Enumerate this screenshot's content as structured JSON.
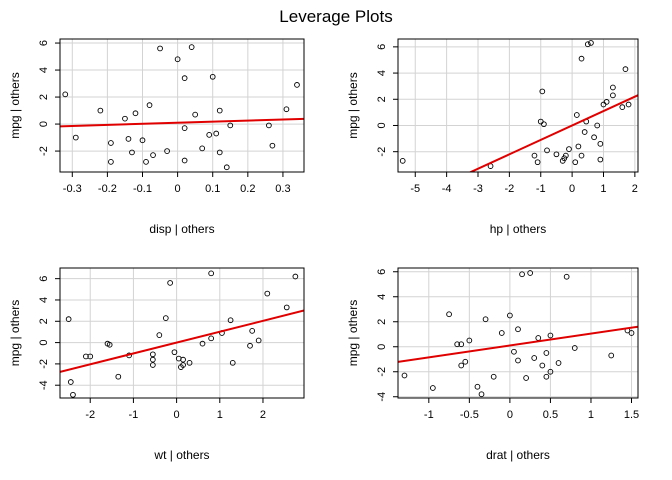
{
  "title": "Leverage Plots",
  "chart_data": [
    {
      "type": "scatter",
      "xlabel": "disp | others",
      "ylabel": "mpg  | others",
      "xlim": [
        -0.335,
        0.36
      ],
      "ylim": [
        -3.55,
        6.3
      ],
      "xticks": [
        -0.3,
        -0.2,
        -0.1,
        0.0,
        0.1,
        0.2,
        0.3
      ],
      "yticks": [
        -2,
        0,
        2,
        4,
        6
      ],
      "grid": true,
      "points": [
        [
          -0.32,
          2.2
        ],
        [
          -0.29,
          -1.0
        ],
        [
          -0.22,
          1.0
        ],
        [
          -0.19,
          -1.4
        ],
        [
          -0.19,
          -2.8
        ],
        [
          -0.15,
          0.4
        ],
        [
          -0.14,
          -1.1
        ],
        [
          -0.13,
          -2.1
        ],
        [
          -0.12,
          0.8
        ],
        [
          -0.1,
          -1.2
        ],
        [
          -0.09,
          -2.8
        ],
        [
          -0.08,
          1.4
        ],
        [
          -0.07,
          -2.3
        ],
        [
          -0.05,
          5.6
        ],
        [
          -0.03,
          -2.0
        ],
        [
          0.0,
          4.8
        ],
        [
          0.02,
          -2.7
        ],
        [
          0.02,
          3.4
        ],
        [
          0.02,
          -0.3
        ],
        [
          0.04,
          5.7
        ],
        [
          0.05,
          0.7
        ],
        [
          0.07,
          -1.8
        ],
        [
          0.09,
          -0.8
        ],
        [
          0.1,
          3.5
        ],
        [
          0.11,
          -0.7
        ],
        [
          0.12,
          1.0
        ],
        [
          0.12,
          -2.1
        ],
        [
          0.14,
          -3.2
        ],
        [
          0.15,
          -0.1
        ],
        [
          0.26,
          -0.1
        ],
        [
          0.27,
          -1.6
        ],
        [
          0.31,
          1.1
        ],
        [
          0.34,
          2.9
        ]
      ],
      "fit": {
        "intercept": 0.1,
        "slope": 0.8
      }
    },
    {
      "type": "scatter",
      "xlabel": "hp | others",
      "ylabel": "mpg  | others",
      "xlim": [
        -5.55,
        2.1
      ],
      "ylim": [
        -3.55,
        6.6
      ],
      "xticks": [
        -5,
        -4,
        -3,
        -2,
        -1,
        0,
        1,
        2
      ],
      "yticks": [
        -2,
        0,
        2,
        4,
        6
      ],
      "grid": true,
      "points": [
        [
          -5.4,
          -2.7
        ],
        [
          -2.6,
          -3.1
        ],
        [
          -1.2,
          -2.3
        ],
        [
          -1.1,
          -2.8
        ],
        [
          -1.0,
          0.3
        ],
        [
          -0.95,
          2.6
        ],
        [
          -0.9,
          0.1
        ],
        [
          -0.8,
          -1.9
        ],
        [
          -0.5,
          -2.2
        ],
        [
          -0.3,
          -2.7
        ],
        [
          -0.25,
          -2.5
        ],
        [
          -0.2,
          -2.3
        ],
        [
          -0.1,
          -1.8
        ],
        [
          0.1,
          -2.8
        ],
        [
          0.15,
          0.8
        ],
        [
          0.2,
          -1.6
        ],
        [
          0.3,
          -2.3
        ],
        [
          0.3,
          5.1
        ],
        [
          0.4,
          -0.5
        ],
        [
          0.45,
          0.3
        ],
        [
          0.5,
          6.2
        ],
        [
          0.6,
          6.3
        ],
        [
          0.7,
          -0.9
        ],
        [
          0.8,
          0.0
        ],
        [
          0.9,
          -2.6
        ],
        [
          0.9,
          -1.4
        ],
        [
          1.0,
          1.6
        ],
        [
          1.1,
          1.8
        ],
        [
          1.3,
          2.3
        ],
        [
          1.3,
          2.9
        ],
        [
          1.6,
          1.4
        ],
        [
          1.7,
          4.3
        ],
        [
          1.8,
          1.6
        ]
      ],
      "fit": {
        "intercept": 0.0,
        "slope": 1.1
      }
    },
    {
      "type": "scatter",
      "xlabel": "wt | others",
      "ylabel": "mpg  | others",
      "xlim": [
        -2.7,
        2.95
      ],
      "ylim": [
        -5.2,
        7.0
      ],
      "xticks": [
        -2,
        -1,
        0,
        1,
        2
      ],
      "yticks": [
        -4,
        -2,
        0,
        2,
        4,
        6
      ],
      "grid": true,
      "points": [
        [
          -2.5,
          2.2
        ],
        [
          -2.45,
          -3.7
        ],
        [
          -2.4,
          -4.9
        ],
        [
          -2.1,
          -1.3
        ],
        [
          -2.0,
          -1.3
        ],
        [
          -1.6,
          -0.1
        ],
        [
          -1.55,
          -0.2
        ],
        [
          -1.35,
          -3.2
        ],
        [
          -1.1,
          -1.2
        ],
        [
          -0.55,
          -1.1
        ],
        [
          -0.55,
          -1.6
        ],
        [
          -0.55,
          -2.1
        ],
        [
          -0.4,
          0.7
        ],
        [
          -0.25,
          2.3
        ],
        [
          -0.15,
          5.6
        ],
        [
          -0.05,
          -0.9
        ],
        [
          0.05,
          -1.5
        ],
        [
          0.1,
          -2.3
        ],
        [
          0.15,
          -1.6
        ],
        [
          0.15,
          -2.1
        ],
        [
          0.3,
          -1.9
        ],
        [
          0.6,
          -0.1
        ],
        [
          0.8,
          0.4
        ],
        [
          0.8,
          6.5
        ],
        [
          1.05,
          0.9
        ],
        [
          1.25,
          2.1
        ],
        [
          1.3,
          -1.9
        ],
        [
          1.7,
          -0.3
        ],
        [
          1.75,
          1.1
        ],
        [
          1.9,
          0.2
        ],
        [
          2.1,
          4.6
        ],
        [
          2.55,
          3.3
        ],
        [
          2.75,
          6.2
        ]
      ],
      "fit": {
        "intercept": 0.0,
        "slope": 1.02
      }
    },
    {
      "type": "scatter",
      "xlabel": "drat | others",
      "ylabel": "mpg  | others",
      "xlim": [
        -1.38,
        1.58
      ],
      "ylim": [
        -4.1,
        6.3
      ],
      "xticks": [
        -1.0,
        -0.5,
        0.0,
        0.5,
        1.0,
        1.5
      ],
      "yticks": [
        -4,
        -2,
        0,
        2,
        4,
        6
      ],
      "grid": true,
      "points": [
        [
          -1.3,
          -2.3
        ],
        [
          -0.95,
          -3.3
        ],
        [
          -0.75,
          2.6
        ],
        [
          -0.65,
          0.2
        ],
        [
          -0.6,
          0.2
        ],
        [
          -0.6,
          -1.5
        ],
        [
          -0.55,
          -1.2
        ],
        [
          -0.5,
          0.5
        ],
        [
          -0.4,
          -3.2
        ],
        [
          -0.35,
          -3.8
        ],
        [
          -0.3,
          2.2
        ],
        [
          -0.2,
          -2.4
        ],
        [
          -0.1,
          1.1
        ],
        [
          0.0,
          2.5
        ],
        [
          0.05,
          -0.4
        ],
        [
          0.1,
          -1.1
        ],
        [
          0.1,
          1.4
        ],
        [
          0.15,
          5.8
        ],
        [
          0.2,
          -2.5
        ],
        [
          0.25,
          5.9
        ],
        [
          0.3,
          -0.9
        ],
        [
          0.35,
          0.7
        ],
        [
          0.4,
          -1.5
        ],
        [
          0.45,
          -0.5
        ],
        [
          0.45,
          -2.4
        ],
        [
          0.5,
          0.9
        ],
        [
          0.5,
          -2.0
        ],
        [
          0.6,
          -1.3
        ],
        [
          0.7,
          5.6
        ],
        [
          0.8,
          -0.1
        ],
        [
          1.25,
          -0.7
        ],
        [
          1.45,
          1.3
        ],
        [
          1.5,
          1.1
        ]
      ],
      "fit": {
        "intercept": 0.1,
        "slope": 0.95
      }
    }
  ]
}
